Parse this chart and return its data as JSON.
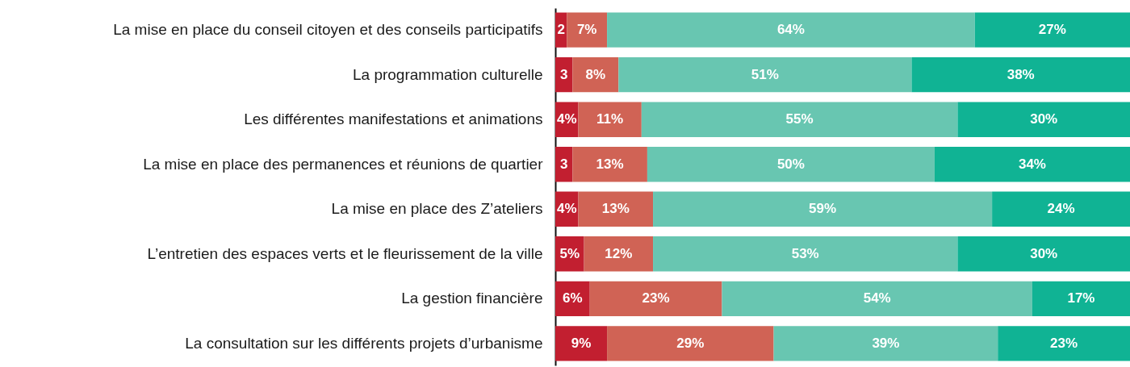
{
  "chart_data": {
    "type": "bar",
    "orientation": "horizontal",
    "stacked": true,
    "tick_labels": "y",
    "xlim": [
      0,
      100
    ],
    "categories": [
      "La mise en place du conseil citoyen et des conseils participatifs",
      "La programmation culturelle",
      "Les différentes manifestations et animations",
      "La mise en place des permanences et réunions de quartier",
      "La mise en place des Z’ateliers",
      "L’entretien des espaces verts et le fleurissement de la ville",
      "La gestion financière",
      "La consultation sur les différents projets d’urbanisme"
    ],
    "series": [
      {
        "color": "#c21f30",
        "values": [
          2,
          3,
          4,
          3,
          4,
          5,
          6,
          9
        ],
        "value_labels": [
          "2",
          "3",
          "4%",
          "3",
          "4%",
          "5%",
          "6%",
          "9%"
        ]
      },
      {
        "color": "#d06355",
        "values": [
          7,
          8,
          11,
          13,
          13,
          12,
          23,
          29
        ],
        "value_labels": [
          "7%",
          "8%",
          "11%",
          "13%",
          "13%",
          "12%",
          "23%",
          "29%"
        ]
      },
      {
        "color": "#68c6b1",
        "values": [
          64,
          51,
          55,
          50,
          59,
          53,
          54,
          39
        ],
        "value_labels": [
          "64%",
          "51%",
          "55%",
          "50%",
          "59%",
          "53%",
          "54%",
          "39%"
        ]
      },
      {
        "color": "#10b394",
        "values": [
          27,
          38,
          30,
          34,
          24,
          30,
          17,
          23
        ],
        "value_labels": [
          "27%",
          "38%",
          "30%",
          "34%",
          "24%",
          "30%",
          "17%",
          "23%"
        ]
      }
    ]
  }
}
